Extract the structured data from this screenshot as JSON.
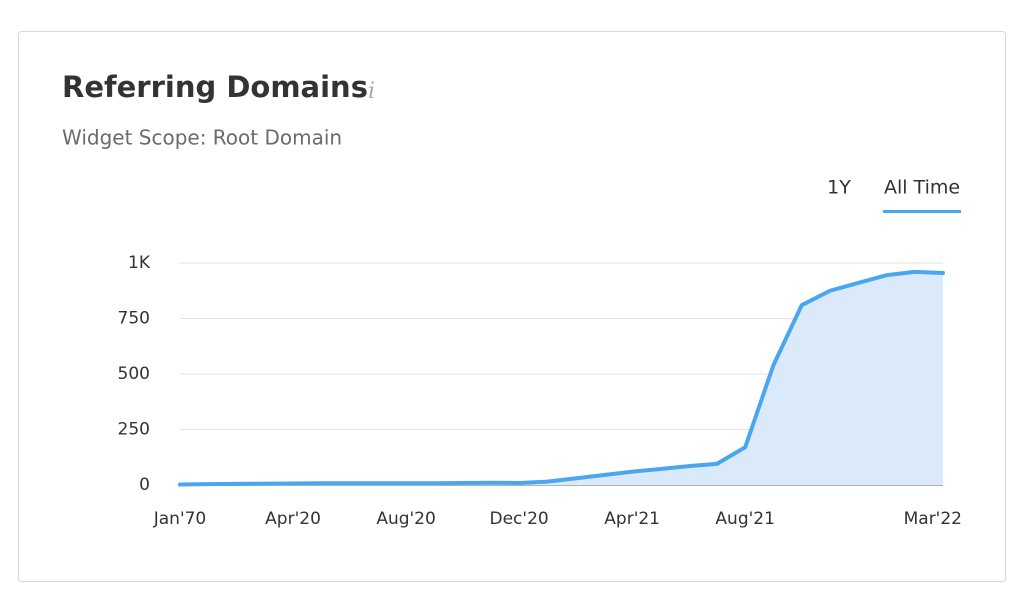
{
  "chart_data": {
    "type": "area",
    "title": "Referring Domains",
    "subtitle": "Widget Scope: Root Domain",
    "tabs": [
      "1Y",
      "All Time"
    ],
    "active_tab": 1,
    "categories": [
      "Jan'70",
      null,
      null,
      null,
      "Apr'20",
      null,
      null,
      null,
      "Aug'20",
      null,
      null,
      null,
      "Dec'20",
      null,
      null,
      null,
      "Apr'21",
      null,
      null,
      null,
      "Aug'21",
      null,
      null,
      null,
      null,
      null,
      null,
      "Mar'22"
    ],
    "values": [
      2,
      4,
      5,
      6,
      7,
      8,
      8,
      8,
      8,
      8,
      9,
      10,
      9,
      15,
      30,
      45,
      60,
      72,
      85,
      95,
      170,
      540,
      810,
      875,
      910,
      945,
      960,
      955
    ],
    "color": "#4aa6ee",
    "fill": "#dbeafb",
    "ylim": [
      0,
      1000
    ],
    "yticks": [
      0,
      250,
      500,
      750,
      {
        "value": 1000,
        "label": "1K"
      }
    ],
    "grid": true
  }
}
